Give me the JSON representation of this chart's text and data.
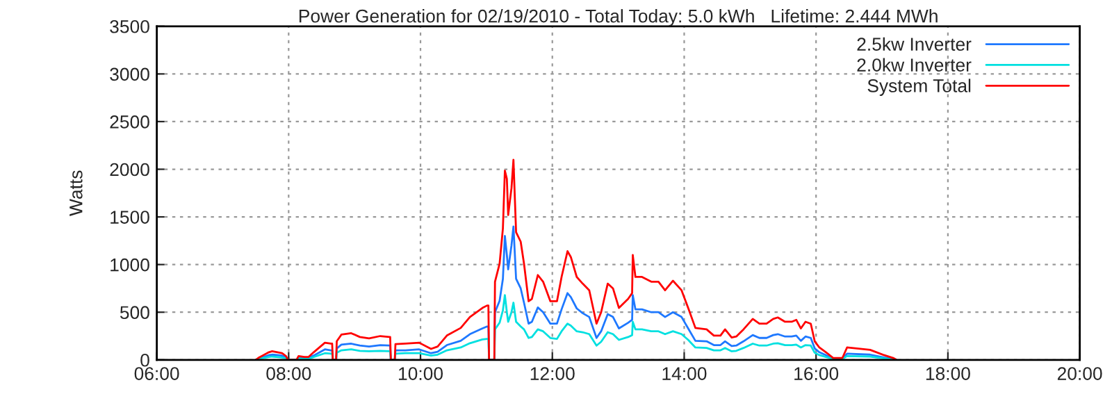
{
  "chart_data": {
    "type": "line",
    "title": "Power Generation for 02/19/2010 - Total Today: 5.0 kWh   Lifetime: 2.444 MWh",
    "ylabel": "Watts",
    "x": [
      7.5,
      7.54,
      7.7,
      7.75,
      7.9,
      7.96,
      7.99,
      8.12,
      8.15,
      8.24,
      8.3,
      8.38,
      8.55,
      8.64,
      8.66,
      8.67,
      8.72,
      8.73,
      8.8,
      8.95,
      9.08,
      9.22,
      9.39,
      9.53,
      9.54,
      9.55,
      9.61,
      9.62,
      9.77,
      9.98,
      10.16,
      10.26,
      10.4,
      10.61,
      10.75,
      10.94,
      11.01,
      11.03,
      11.04,
      11.12,
      11.13,
      11.2,
      11.25,
      11.28,
      11.31,
      11.33,
      11.38,
      11.41,
      11.45,
      11.52,
      11.57,
      11.64,
      11.69,
      11.78,
      11.86,
      11.97,
      12.07,
      12.14,
      12.23,
      12.28,
      12.37,
      12.46,
      12.56,
      12.67,
      12.74,
      12.84,
      12.92,
      13.01,
      13.15,
      13.21,
      13.22,
      13.26,
      13.36,
      13.5,
      13.61,
      13.71,
      13.83,
      13.96,
      14.06,
      14.17,
      14.34,
      14.45,
      14.55,
      14.62,
      14.72,
      14.79,
      14.9,
      15.04,
      15.14,
      15.25,
      15.35,
      15.42,
      15.53,
      15.63,
      15.7,
      15.77,
      15.84,
      15.92,
      15.98,
      16.05,
      16.15,
      16.26,
      16.4,
      16.47,
      16.82,
      17.03,
      17.17,
      17.22
    ],
    "series": [
      {
        "name": "2.5kw Inverter",
        "color": "#1e78ff",
        "values": [
          0,
          10,
          50,
          55,
          45,
          25,
          0,
          0,
          25,
          20,
          20,
          45,
          110,
          100,
          100,
          0,
          0,
          120,
          160,
          170,
          150,
          140,
          155,
          150,
          150,
          0,
          0,
          100,
          100,
          110,
          70,
          85,
          155,
          200,
          270,
          330,
          350,
          350,
          0,
          0,
          500,
          620,
          850,
          1300,
          1100,
          950,
          1200,
          1400,
          850,
          750,
          600,
          380,
          400,
          550,
          500,
          380,
          380,
          530,
          700,
          660,
          540,
          490,
          450,
          230,
          300,
          480,
          450,
          330,
          390,
          420,
          680,
          530,
          530,
          500,
          500,
          450,
          500,
          450,
          330,
          200,
          195,
          155,
          155,
          195,
          145,
          150,
          195,
          260,
          230,
          230,
          260,
          270,
          245,
          245,
          255,
          200,
          245,
          230,
          120,
          80,
          50,
          10,
          10,
          65,
          55,
          25,
          10,
          0
        ]
      },
      {
        "name": "2.0kw Inverter",
        "color": "#00e0e0",
        "values": [
          0,
          10,
          30,
          35,
          25,
          15,
          0,
          0,
          15,
          10,
          10,
          30,
          70,
          65,
          65,
          0,
          0,
          75,
          100,
          110,
          95,
          90,
          95,
          90,
          90,
          0,
          0,
          65,
          70,
          70,
          45,
          55,
          100,
          130,
          175,
          215,
          220,
          220,
          0,
          0,
          320,
          390,
          520,
          680,
          500,
          400,
          500,
          600,
          400,
          350,
          320,
          230,
          240,
          320,
          300,
          230,
          220,
          300,
          380,
          360,
          300,
          290,
          270,
          150,
          190,
          290,
          270,
          210,
          240,
          260,
          400,
          320,
          320,
          300,
          300,
          270,
          300,
          270,
          210,
          130,
          125,
          100,
          100,
          125,
          90,
          95,
          125,
          170,
          150,
          150,
          170,
          175,
          155,
          155,
          160,
          130,
          155,
          150,
          75,
          50,
          30,
          10,
          10,
          40,
          35,
          15,
          5,
          0
        ]
      },
      {
        "name": "System Total",
        "color": "#ff0000",
        "values": [
          0,
          20,
          80,
          90,
          70,
          40,
          0,
          0,
          40,
          30,
          30,
          80,
          180,
          170,
          170,
          0,
          0,
          195,
          265,
          280,
          240,
          225,
          250,
          240,
          240,
          0,
          0,
          165,
          170,
          180,
          115,
          140,
          255,
          335,
          450,
          545,
          570,
          570,
          0,
          0,
          820,
          1010,
          1380,
          1985,
          1900,
          1520,
          1800,
          2100,
          1340,
          1240,
          1010,
          615,
          640,
          890,
          820,
          615,
          615,
          870,
          1140,
          1080,
          870,
          800,
          730,
          380,
          500,
          800,
          750,
          545,
          640,
          700,
          1100,
          870,
          870,
          820,
          820,
          730,
          830,
          730,
          545,
          335,
          320,
          255,
          255,
          320,
          235,
          245,
          320,
          430,
          380,
          380,
          430,
          445,
          400,
          400,
          420,
          330,
          400,
          380,
          195,
          130,
          80,
          20,
          20,
          130,
          105,
          50,
          20,
          0
        ]
      }
    ],
    "xlim": [
      6,
      20
    ],
    "xticks": [
      {
        "value": 6,
        "label": "06:00"
      },
      {
        "value": 8,
        "label": "08:00"
      },
      {
        "value": 10,
        "label": "10:00"
      },
      {
        "value": 12,
        "label": "12:00"
      },
      {
        "value": 14,
        "label": "14:00"
      },
      {
        "value": 16,
        "label": "16:00"
      },
      {
        "value": 18,
        "label": "18:00"
      },
      {
        "value": 20,
        "label": "20:00"
      }
    ],
    "ylim": [
      0,
      3500
    ],
    "yticks": [
      0,
      500,
      1000,
      1500,
      2000,
      2500,
      3000,
      3500
    ],
    "grid": true,
    "legend": "top right",
    "line_style": "solid"
  }
}
